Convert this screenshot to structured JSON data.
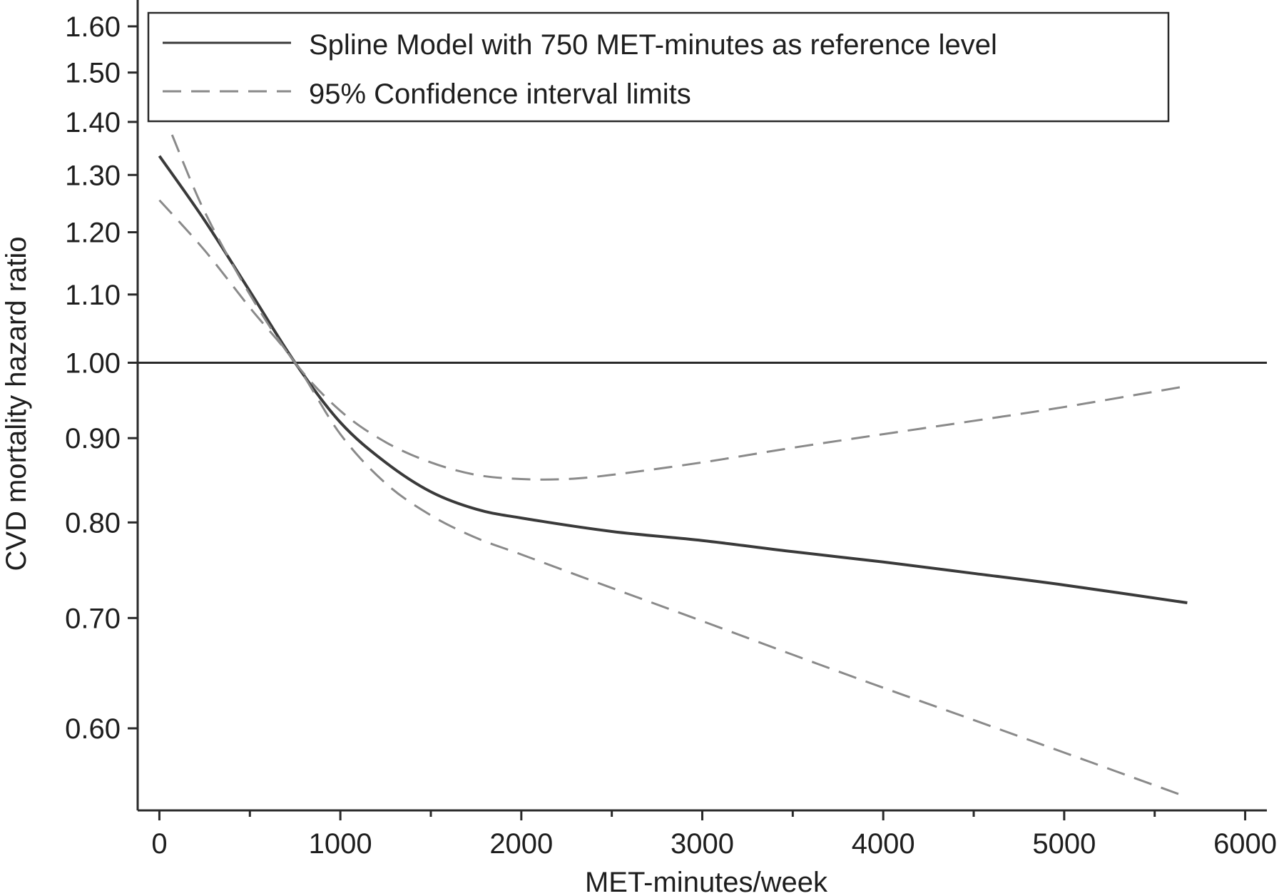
{
  "chart_data": {
    "type": "line",
    "xlabel": "MET-minutes/week",
    "ylabel": "CVD mortality hazard ratio",
    "xlim": [
      -120,
      6120
    ],
    "ylim": [
      0.535,
      1.66
    ],
    "y_scale": "log",
    "x_ticks": [
      0,
      1000,
      2000,
      3000,
      4000,
      5000,
      6000
    ],
    "x_tick_labels": [
      "0",
      "1000",
      "2000",
      "3000",
      "4000",
      "5000",
      "6000"
    ],
    "y_ticks": [
      0.6,
      0.7,
      0.8,
      0.9,
      1.0,
      1.1,
      1.2,
      1.3,
      1.4,
      1.5,
      1.6
    ],
    "y_tick_labels": [
      "0.60",
      "0.70",
      "0.80",
      "0.90",
      "1.00",
      "1.10",
      "1.20",
      "1.30",
      "1.40",
      "1.50",
      "1.60"
    ],
    "reference_line": 1.0,
    "legend": {
      "position": "top",
      "entries": [
        "Spline Model with 750 MET-minutes as reference level",
        "95% Confidence interval limits"
      ]
    },
    "series": [
      {
        "name": "Spline Model with 750 MET-minutes as reference level",
        "style": "solid",
        "color": "#3a3a3a",
        "x": [
          0,
          250,
          500,
          750,
          1000,
          1250,
          1500,
          1750,
          2000,
          2500,
          3000,
          3500,
          4000,
          4500,
          5000,
          5680
        ],
        "y": [
          1.335,
          1.22,
          1.105,
          1.0,
          0.92,
          0.87,
          0.835,
          0.815,
          0.805,
          0.79,
          0.78,
          0.768,
          0.757,
          0.745,
          0.733,
          0.715
        ]
      },
      {
        "name": "95% Confidence interval limits",
        "style": "dashed",
        "color": "#8a8a8a",
        "x": [
          70,
          250,
          500,
          750,
          1000,
          1250,
          1500,
          1750,
          2000,
          2250,
          2500,
          3000,
          3500,
          4000,
          4500,
          5000,
          5680
        ],
        "y": [
          1.375,
          1.235,
          1.1,
          1.0,
          0.935,
          0.895,
          0.87,
          0.855,
          0.85,
          0.85,
          0.855,
          0.87,
          0.888,
          0.905,
          0.922,
          0.94,
          0.968
        ]
      },
      {
        "name": "",
        "style": "dashed",
        "color": "#8a8a8a",
        "x": [
          0,
          250,
          500,
          750,
          1000,
          1250,
          1500,
          1750,
          2000,
          2500,
          3000,
          3500,
          4000,
          4500,
          5000,
          5680
        ],
        "y": [
          1.255,
          1.17,
          1.08,
          1.0,
          0.905,
          0.845,
          0.808,
          0.783,
          0.765,
          0.73,
          0.697,
          0.665,
          0.635,
          0.607,
          0.58,
          0.545
        ]
      }
    ]
  }
}
